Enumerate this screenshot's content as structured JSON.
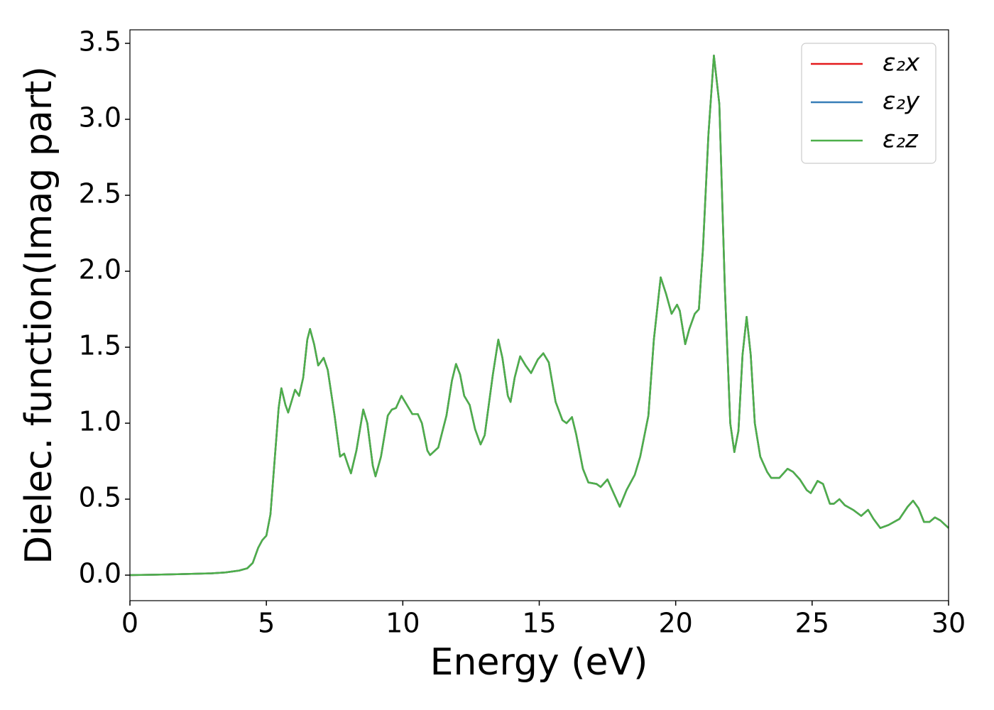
{
  "chart_data": {
    "type": "line",
    "xlabel": "Energy (eV)",
    "ylabel": "Dielec. function(Imag part)",
    "xlim": [
      0,
      30
    ],
    "ylim": [
      -0.168,
      3.589
    ],
    "xticks": [
      0,
      5,
      10,
      15,
      20,
      25,
      30
    ],
    "yticks": [
      {
        "value": 0,
        "label": "0.0"
      },
      0.5,
      {
        "value": 1,
        "label": "1.0"
      },
      1.5,
      {
        "value": 2,
        "label": "2.0"
      },
      2.5,
      {
        "value": 3,
        "label": "3.0"
      },
      3.5
    ],
    "legend": "upper right",
    "x": [
      0,
      1,
      2,
      3,
      3.5,
      4,
      4.3,
      4.5,
      4.7,
      4.85,
      5.0,
      5.15,
      5.3,
      5.45,
      5.55,
      5.7,
      5.8,
      5.95,
      6.05,
      6.2,
      6.35,
      6.5,
      6.6,
      6.75,
      6.9,
      7.1,
      7.25,
      7.5,
      7.7,
      7.85,
      8.0,
      8.1,
      8.3,
      8.55,
      8.7,
      8.9,
      9.0,
      9.2,
      9.45,
      9.6,
      9.75,
      9.95,
      10.15,
      10.35,
      10.55,
      10.7,
      10.9,
      11.0,
      11.3,
      11.6,
      11.8,
      11.95,
      12.1,
      12.25,
      12.45,
      12.65,
      12.85,
      13.0,
      13.3,
      13.5,
      13.65,
      13.85,
      13.95,
      14.1,
      14.3,
      14.5,
      14.7,
      14.95,
      15.15,
      15.35,
      15.6,
      15.85,
      16.0,
      16.2,
      16.35,
      16.6,
      16.8,
      17.1,
      17.25,
      17.5,
      17.7,
      17.95,
      18.2,
      18.5,
      18.7,
      19.0,
      19.2,
      19.45,
      19.65,
      19.85,
      20.05,
      20.15,
      20.35,
      20.5,
      20.7,
      20.85,
      21.0,
      21.2,
      21.4,
      21.6,
      21.8,
      22.0,
      22.15,
      22.3,
      22.45,
      22.6,
      22.75,
      22.9,
      23.1,
      23.35,
      23.5,
      23.8,
      24.1,
      24.3,
      24.55,
      24.8,
      24.95,
      25.2,
      25.4,
      25.65,
      25.8,
      26.0,
      26.2,
      26.5,
      26.8,
      27.05,
      27.25,
      27.5,
      27.8,
      28.2,
      28.5,
      28.7,
      28.9,
      29.1,
      29.3,
      29.5,
      29.7,
      30.0
    ],
    "series": [
      {
        "name": "ε₂x",
        "color": "#e41a1c",
        "values": [
          0.0,
          0.003,
          0.007,
          0.012,
          0.018,
          0.03,
          0.045,
          0.08,
          0.18,
          0.23,
          0.26,
          0.4,
          0.75,
          1.1,
          1.23,
          1.12,
          1.07,
          1.16,
          1.22,
          1.18,
          1.3,
          1.55,
          1.62,
          1.52,
          1.38,
          1.43,
          1.35,
          1.05,
          0.78,
          0.8,
          0.72,
          0.67,
          0.82,
          1.09,
          1.0,
          0.72,
          0.65,
          0.78,
          1.05,
          1.09,
          1.1,
          1.18,
          1.12,
          1.06,
          1.06,
          1.0,
          0.82,
          0.79,
          0.84,
          1.05,
          1.28,
          1.39,
          1.32,
          1.18,
          1.12,
          0.96,
          0.86,
          0.92,
          1.32,
          1.55,
          1.43,
          1.18,
          1.14,
          1.3,
          1.44,
          1.38,
          1.33,
          1.42,
          1.46,
          1.4,
          1.14,
          1.02,
          1.0,
          1.04,
          0.93,
          0.7,
          0.61,
          0.6,
          0.58,
          0.63,
          0.55,
          0.45,
          0.56,
          0.66,
          0.78,
          1.05,
          1.55,
          1.96,
          1.85,
          1.72,
          1.78,
          1.74,
          1.52,
          1.62,
          1.72,
          1.75,
          2.15,
          2.9,
          3.42,
          3.1,
          1.9,
          1.0,
          0.81,
          0.95,
          1.45,
          1.7,
          1.45,
          1.0,
          0.78,
          0.68,
          0.64,
          0.64,
          0.7,
          0.68,
          0.63,
          0.56,
          0.54,
          0.62,
          0.6,
          0.47,
          0.47,
          0.5,
          0.46,
          0.43,
          0.39,
          0.43,
          0.37,
          0.31,
          0.33,
          0.37,
          0.45,
          0.49,
          0.44,
          0.35,
          0.35,
          0.38,
          0.36,
          0.31
        ]
      },
      {
        "name": "ε₂y",
        "color": "#377eb8",
        "values": [
          0.0,
          0.003,
          0.007,
          0.012,
          0.018,
          0.03,
          0.045,
          0.08,
          0.18,
          0.23,
          0.26,
          0.4,
          0.75,
          1.1,
          1.23,
          1.12,
          1.07,
          1.16,
          1.22,
          1.18,
          1.3,
          1.55,
          1.62,
          1.52,
          1.38,
          1.43,
          1.35,
          1.05,
          0.78,
          0.8,
          0.72,
          0.67,
          0.82,
          1.09,
          1.0,
          0.72,
          0.65,
          0.78,
          1.05,
          1.09,
          1.1,
          1.18,
          1.12,
          1.06,
          1.06,
          1.0,
          0.82,
          0.79,
          0.84,
          1.05,
          1.28,
          1.39,
          1.32,
          1.18,
          1.12,
          0.96,
          0.86,
          0.92,
          1.32,
          1.55,
          1.43,
          1.18,
          1.14,
          1.3,
          1.44,
          1.38,
          1.33,
          1.42,
          1.46,
          1.4,
          1.14,
          1.02,
          1.0,
          1.04,
          0.93,
          0.7,
          0.61,
          0.6,
          0.58,
          0.63,
          0.55,
          0.45,
          0.56,
          0.66,
          0.78,
          1.05,
          1.55,
          1.96,
          1.85,
          1.72,
          1.78,
          1.74,
          1.52,
          1.62,
          1.72,
          1.75,
          2.15,
          2.9,
          3.42,
          3.1,
          1.9,
          1.0,
          0.81,
          0.95,
          1.45,
          1.7,
          1.45,
          1.0,
          0.78,
          0.68,
          0.64,
          0.64,
          0.7,
          0.68,
          0.63,
          0.56,
          0.54,
          0.62,
          0.6,
          0.47,
          0.47,
          0.5,
          0.46,
          0.43,
          0.39,
          0.43,
          0.37,
          0.31,
          0.33,
          0.37,
          0.45,
          0.49,
          0.44,
          0.35,
          0.35,
          0.38,
          0.36,
          0.31
        ]
      },
      {
        "name": "ε₂z",
        "color": "#4daf4a",
        "values": [
          0.0,
          0.003,
          0.007,
          0.012,
          0.018,
          0.03,
          0.045,
          0.08,
          0.18,
          0.23,
          0.26,
          0.4,
          0.75,
          1.1,
          1.23,
          1.12,
          1.07,
          1.16,
          1.22,
          1.18,
          1.3,
          1.55,
          1.62,
          1.52,
          1.38,
          1.43,
          1.35,
          1.05,
          0.78,
          0.8,
          0.72,
          0.67,
          0.82,
          1.09,
          1.0,
          0.72,
          0.65,
          0.78,
          1.05,
          1.09,
          1.1,
          1.18,
          1.12,
          1.06,
          1.06,
          1.0,
          0.82,
          0.79,
          0.84,
          1.05,
          1.28,
          1.39,
          1.32,
          1.18,
          1.12,
          0.96,
          0.86,
          0.92,
          1.32,
          1.55,
          1.43,
          1.18,
          1.14,
          1.3,
          1.44,
          1.38,
          1.33,
          1.42,
          1.46,
          1.4,
          1.14,
          1.02,
          1.0,
          1.04,
          0.93,
          0.7,
          0.61,
          0.6,
          0.58,
          0.63,
          0.55,
          0.45,
          0.56,
          0.66,
          0.78,
          1.05,
          1.55,
          1.96,
          1.85,
          1.72,
          1.78,
          1.74,
          1.52,
          1.62,
          1.72,
          1.75,
          2.15,
          2.9,
          3.42,
          3.1,
          1.9,
          1.0,
          0.81,
          0.95,
          1.45,
          1.7,
          1.45,
          1.0,
          0.78,
          0.68,
          0.64,
          0.64,
          0.7,
          0.68,
          0.63,
          0.56,
          0.54,
          0.62,
          0.6,
          0.47,
          0.47,
          0.5,
          0.46,
          0.43,
          0.39,
          0.43,
          0.37,
          0.31,
          0.33,
          0.37,
          0.45,
          0.49,
          0.44,
          0.35,
          0.35,
          0.38,
          0.36,
          0.31
        ]
      }
    ]
  }
}
